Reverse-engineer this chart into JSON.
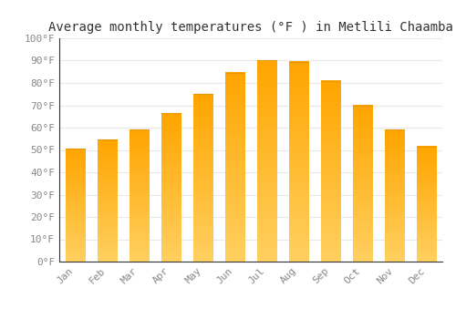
{
  "title": "Average monthly temperatures (°F ) in Metlili Chaamba",
  "months": [
    "Jan",
    "Feb",
    "Mar",
    "Apr",
    "May",
    "Jun",
    "Jul",
    "Aug",
    "Sep",
    "Oct",
    "Nov",
    "Dec"
  ],
  "values": [
    50.5,
    54.5,
    59,
    66.5,
    75,
    84.5,
    90,
    89.5,
    81,
    70,
    59,
    51.5
  ],
  "bar_color_bottom": "#FFD060",
  "bar_color_top": "#FFA500",
  "bar_edge_color": "#E8960A",
  "ylim": [
    0,
    100
  ],
  "yticks": [
    0,
    10,
    20,
    30,
    40,
    50,
    60,
    70,
    80,
    90,
    100
  ],
  "ytick_labels": [
    "0°F",
    "10°F",
    "20°F",
    "30°F",
    "40°F",
    "50°F",
    "60°F",
    "70°F",
    "80°F",
    "90°F",
    "100°F"
  ],
  "background_color": "#ffffff",
  "plot_bg_color": "#ffffff",
  "grid_color": "#e8e8e8",
  "title_fontsize": 10,
  "tick_fontsize": 8,
  "tick_color": "#888888",
  "spine_color": "#333333"
}
